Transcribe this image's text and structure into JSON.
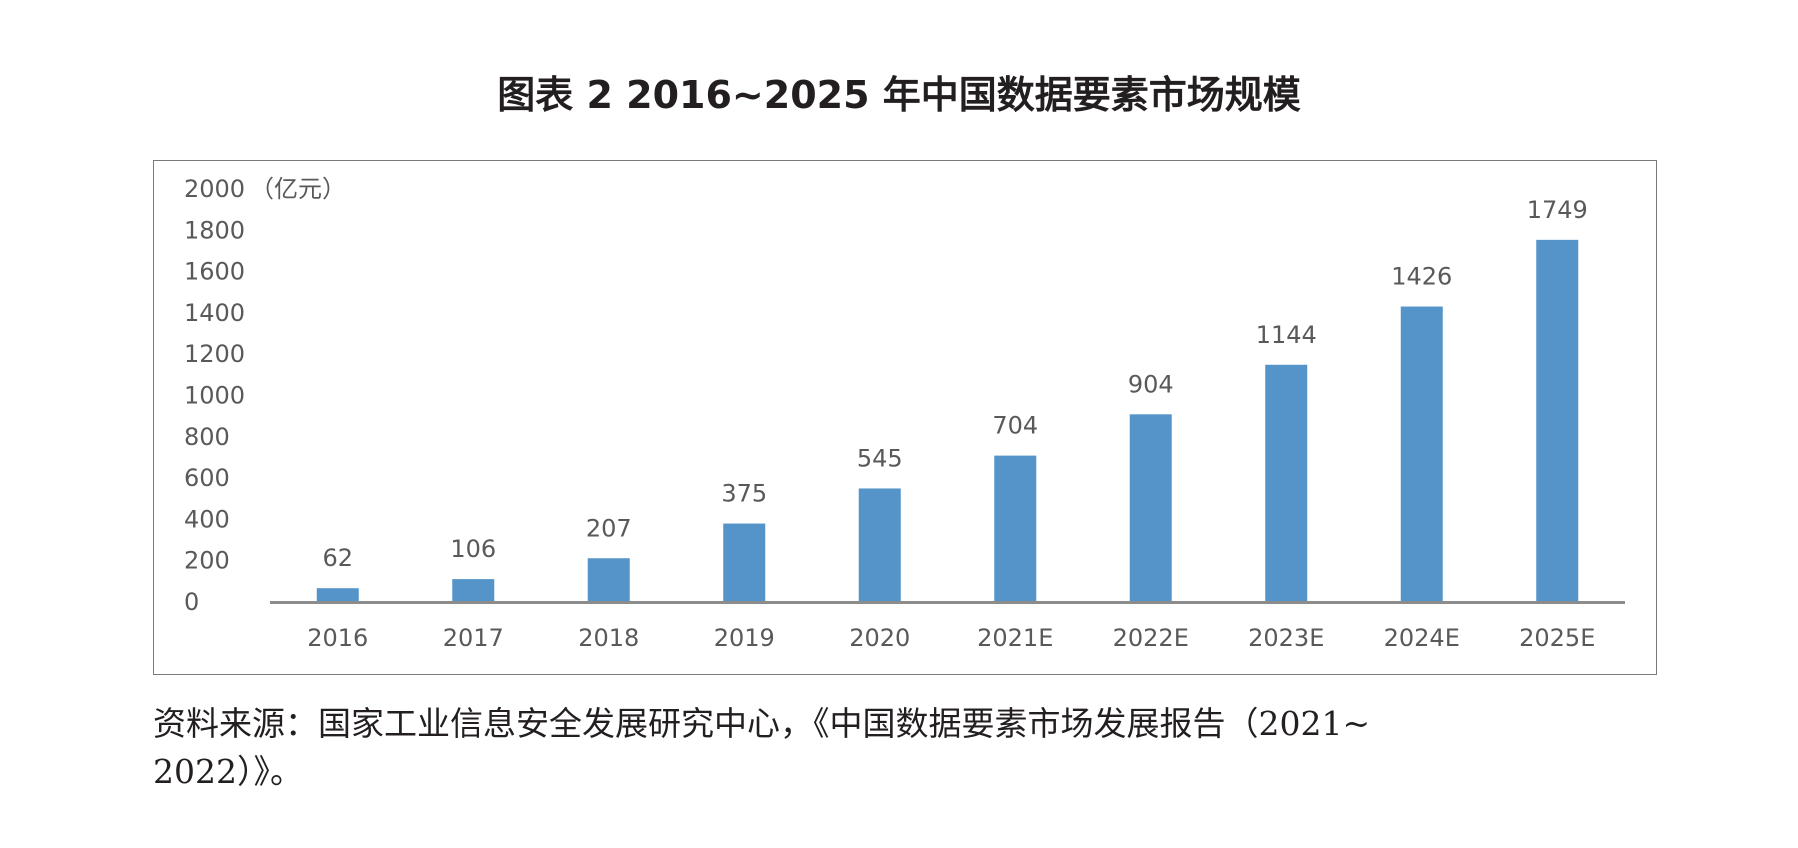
{
  "title": "图表 2  2016~2025 年中国数据要素市场规模",
  "chart_data": {
    "type": "bar",
    "categories": [
      "2016",
      "2017",
      "2018",
      "2019",
      "2020",
      "2021E",
      "2022E",
      "2023E",
      "2024E",
      "2025E"
    ],
    "values": [
      62,
      106,
      207,
      375,
      545,
      704,
      904,
      1144,
      1426,
      1749
    ],
    "data_labels": [
      "62",
      "106",
      "207",
      "375",
      "545",
      "704",
      "904",
      "1144",
      "1426",
      "1749"
    ],
    "unit": "（亿元）",
    "ylim": [
      0,
      2000
    ],
    "yticks": [
      "0",
      "200",
      "400",
      "600",
      "800",
      "1000",
      "1200",
      "1400",
      "1600",
      "1800",
      "2000"
    ],
    "grid": false,
    "bar_color": "#5494c8"
  },
  "source": {
    "line1": "资料来源：国家工业信息安全发展研究中心，《中国数据要素市场发展报告（2021~",
    "line2": "2022）》。"
  }
}
